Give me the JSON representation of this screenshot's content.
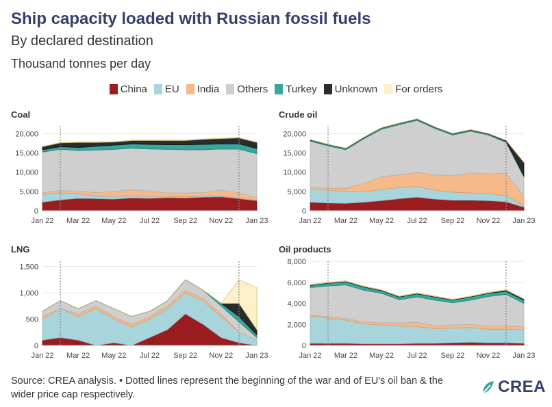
{
  "header": {
    "title": "Ship capacity loaded with Russian fossil fuels",
    "subtitle": "By declared destination",
    "unit": "Thousand tonnes per day"
  },
  "legend": [
    {
      "label": "China",
      "color": "#9b1c1f"
    },
    {
      "label": "EU",
      "color": "#a8d5dc"
    },
    {
      "label": "India",
      "color": "#f6b98a"
    },
    {
      "label": "Others",
      "color": "#cfcfcf"
    },
    {
      "label": "Turkey",
      "color": "#35a79c"
    },
    {
      "label": "Unknown",
      "color": "#2b2b2b"
    },
    {
      "label": "For orders",
      "color": "#fdf0c8"
    }
  ],
  "footer": {
    "source": "Source: CREA analysis. • Dotted lines represent the beginning of the war and of EU's oil ban & the wider price cap respectively.",
    "logo_text": "CREA"
  },
  "chart_data": [
    {
      "title": "Coal",
      "type": "area",
      "stacked": true,
      "x": [
        "Jan 22",
        "Feb 22",
        "Mar 22",
        "Apr 22",
        "May 22",
        "Jun 22",
        "Jul 22",
        "Aug 22",
        "Sep 22",
        "Oct 22",
        "Nov 22",
        "Dec 22",
        "Jan 23"
      ],
      "xticks": [
        "Jan 22",
        "Mar 22",
        "May 22",
        "Jul 22",
        "Sep 22",
        "Nov 22",
        "Jan 23"
      ],
      "yticks": [
        "0",
        "5,000",
        "10,000",
        "15,000",
        "20,000"
      ],
      "ylim": [
        0,
        22000
      ],
      "reference_lines": [
        "Feb 22",
        "Dec 22"
      ],
      "series": [
        {
          "name": "China",
          "values": [
            2200,
            2800,
            3200,
            3100,
            3000,
            3300,
            3200,
            3400,
            3300,
            3500,
            3600,
            3100,
            2600
          ]
        },
        {
          "name": "EU",
          "values": [
            2000,
            1800,
            1200,
            700,
            700,
            500,
            500,
            300,
            300,
            300,
            200,
            150,
            100
          ]
        },
        {
          "name": "India",
          "values": [
            500,
            600,
            700,
            900,
            1300,
            1600,
            1400,
            900,
            1000,
            900,
            1500,
            1400,
            600
          ]
        },
        {
          "name": "Others",
          "values": [
            10500,
            10700,
            10500,
            11000,
            10900,
            10800,
            10900,
            11300,
            11200,
            11100,
            10700,
            11300,
            11500
          ]
        },
        {
          "name": "Turkey",
          "values": [
            600,
            700,
            800,
            1000,
            1100,
            1100,
            1200,
            1200,
            1300,
            1400,
            1300,
            1400,
            1300
          ]
        },
        {
          "name": "Unknown",
          "values": [
            800,
            1000,
            1300,
            1000,
            800,
            900,
            1000,
            1100,
            1100,
            1300,
            1400,
            1500,
            1600
          ]
        },
        {
          "name": "For orders",
          "values": [
            0,
            100,
            100,
            100,
            100,
            100,
            100,
            100,
            100,
            100,
            100,
            100,
            100
          ]
        }
      ]
    },
    {
      "title": "Crude oil",
      "type": "area",
      "stacked": true,
      "x": [
        "Jan 22",
        "Feb 22",
        "Mar 22",
        "Apr 22",
        "May 22",
        "Jun 22",
        "Jul 22",
        "Aug 22",
        "Sep 22",
        "Oct 22",
        "Nov 22",
        "Dec 22",
        "Jan 23"
      ],
      "xticks": [
        "Jan 22",
        "Mar 22",
        "May 22",
        "Jul 22",
        "Sep 22",
        "Nov 22",
        "Jan 23"
      ],
      "yticks": [
        "0",
        "5,000",
        "10,000",
        "15,000",
        "20,000"
      ],
      "ylim": [
        0,
        22000
      ],
      "reference_lines": [
        "Feb 22",
        "Dec 22"
      ],
      "series": [
        {
          "name": "China",
          "values": [
            2200,
            2000,
            1900,
            2200,
            2600,
            3100,
            3500,
            3000,
            2700,
            2700,
            2600,
            2300,
            900
          ]
        },
        {
          "name": "EU",
          "values": [
            3300,
            3300,
            3100,
            2700,
            2900,
            2900,
            2800,
            2300,
            2100,
            1900,
            1800,
            1600,
            400
          ]
        },
        {
          "name": "India",
          "values": [
            600,
            500,
            800,
            2200,
            3300,
            3300,
            3600,
            4000,
            4300,
            5200,
            5200,
            5800,
            2400
          ]
        },
        {
          "name": "Others",
          "values": [
            11900,
            11000,
            10000,
            11500,
            12300,
            13000,
            13500,
            12000,
            10500,
            10800,
            10000,
            8000,
            5000
          ]
        },
        {
          "name": "Turkey",
          "values": [
            300,
            300,
            300,
            300,
            300,
            300,
            300,
            300,
            300,
            300,
            300,
            300,
            300
          ]
        },
        {
          "name": "Unknown",
          "values": [
            100,
            100,
            100,
            100,
            100,
            100,
            100,
            100,
            100,
            100,
            100,
            200,
            3500
          ]
        },
        {
          "name": "For orders",
          "values": [
            50,
            50,
            50,
            50,
            50,
            50,
            50,
            50,
            50,
            50,
            50,
            50,
            50
          ]
        }
      ]
    },
    {
      "title": "LNG",
      "type": "area",
      "stacked": true,
      "x": [
        "Jan 22",
        "Feb 22",
        "Mar 22",
        "Apr 22",
        "May 22",
        "Jun 22",
        "Jul 22",
        "Aug 22",
        "Sep 22",
        "Oct 22",
        "Nov 22",
        "Dec 22",
        "Jan 23"
      ],
      "xticks": [
        "Jan 22",
        "Mar 22",
        "May 22",
        "Jul 22",
        "Sep 22",
        "Nov 22",
        "Jan 23"
      ],
      "yticks": [
        "0",
        "500",
        "1,000",
        "1,500"
      ],
      "ylim": [
        0,
        1600
      ],
      "reference_lines": [
        "Feb 22",
        "Dec 22"
      ],
      "series": [
        {
          "name": "China",
          "values": [
            100,
            150,
            100,
            0,
            50,
            0,
            150,
            300,
            600,
            400,
            150,
            50,
            0
          ]
        },
        {
          "name": "EU",
          "values": [
            400,
            550,
            450,
            700,
            450,
            350,
            350,
            400,
            400,
            450,
            400,
            200,
            100
          ]
        },
        {
          "name": "India",
          "values": [
            50,
            0,
            50,
            50,
            50,
            50,
            50,
            50,
            50,
            50,
            50,
            0,
            0
          ]
        },
        {
          "name": "Others",
          "values": [
            100,
            150,
            100,
            100,
            150,
            150,
            100,
            100,
            200,
            150,
            150,
            200,
            50
          ]
        },
        {
          "name": "Turkey",
          "values": [
            0,
            0,
            0,
            0,
            0,
            0,
            0,
            0,
            0,
            0,
            50,
            100,
            50
          ]
        },
        {
          "name": "Unknown",
          "values": [
            0,
            0,
            0,
            0,
            0,
            0,
            0,
            0,
            0,
            0,
            0,
            250,
            100
          ]
        },
        {
          "name": "For orders",
          "values": [
            0,
            0,
            0,
            0,
            0,
            0,
            0,
            0,
            0,
            0,
            0,
            450,
            800
          ]
        }
      ]
    },
    {
      "title": "Oil products",
      "type": "area",
      "stacked": true,
      "x": [
        "Jan 22",
        "Feb 22",
        "Mar 22",
        "Apr 22",
        "May 22",
        "Jun 22",
        "Jul 22",
        "Aug 22",
        "Sep 22",
        "Oct 22",
        "Nov 22",
        "Dec 22",
        "Jan 23"
      ],
      "xticks": [
        "Jan 22",
        "Mar 22",
        "May 22",
        "Jul 22",
        "Sep 22",
        "Nov 22",
        "Jan 23"
      ],
      "yticks": [
        "0",
        "2,000",
        "4,000",
        "6,000",
        "8,000"
      ],
      "ylim": [
        0,
        8000
      ],
      "reference_lines": [
        "Feb 22",
        "Dec 22"
      ],
      "series": [
        {
          "name": "China",
          "values": [
            200,
            200,
            200,
            150,
            150,
            150,
            200,
            200,
            250,
            300,
            250,
            250,
            200
          ]
        },
        {
          "name": "EU",
          "values": [
            2600,
            2400,
            2200,
            1900,
            1800,
            1700,
            1600,
            1400,
            1400,
            1400,
            1300,
            1300,
            1300
          ]
        },
        {
          "name": "India",
          "values": [
            100,
            150,
            150,
            200,
            200,
            300,
            400,
            300,
            300,
            300,
            300,
            300,
            300
          ]
        },
        {
          "name": "Others",
          "values": [
            2600,
            2900,
            3200,
            3000,
            2800,
            2200,
            2400,
            2400,
            2100,
            2300,
            2800,
            3000,
            2200
          ]
        },
        {
          "name": "Turkey",
          "values": [
            200,
            250,
            300,
            300,
            250,
            250,
            300,
            300,
            250,
            300,
            300,
            300,
            300
          ]
        },
        {
          "name": "Unknown",
          "values": [
            50,
            50,
            50,
            50,
            50,
            50,
            50,
            50,
            50,
            50,
            50,
            100,
            100
          ]
        },
        {
          "name": "For orders",
          "values": [
            50,
            50,
            50,
            50,
            50,
            50,
            50,
            50,
            50,
            50,
            50,
            50,
            50
          ]
        }
      ]
    }
  ]
}
